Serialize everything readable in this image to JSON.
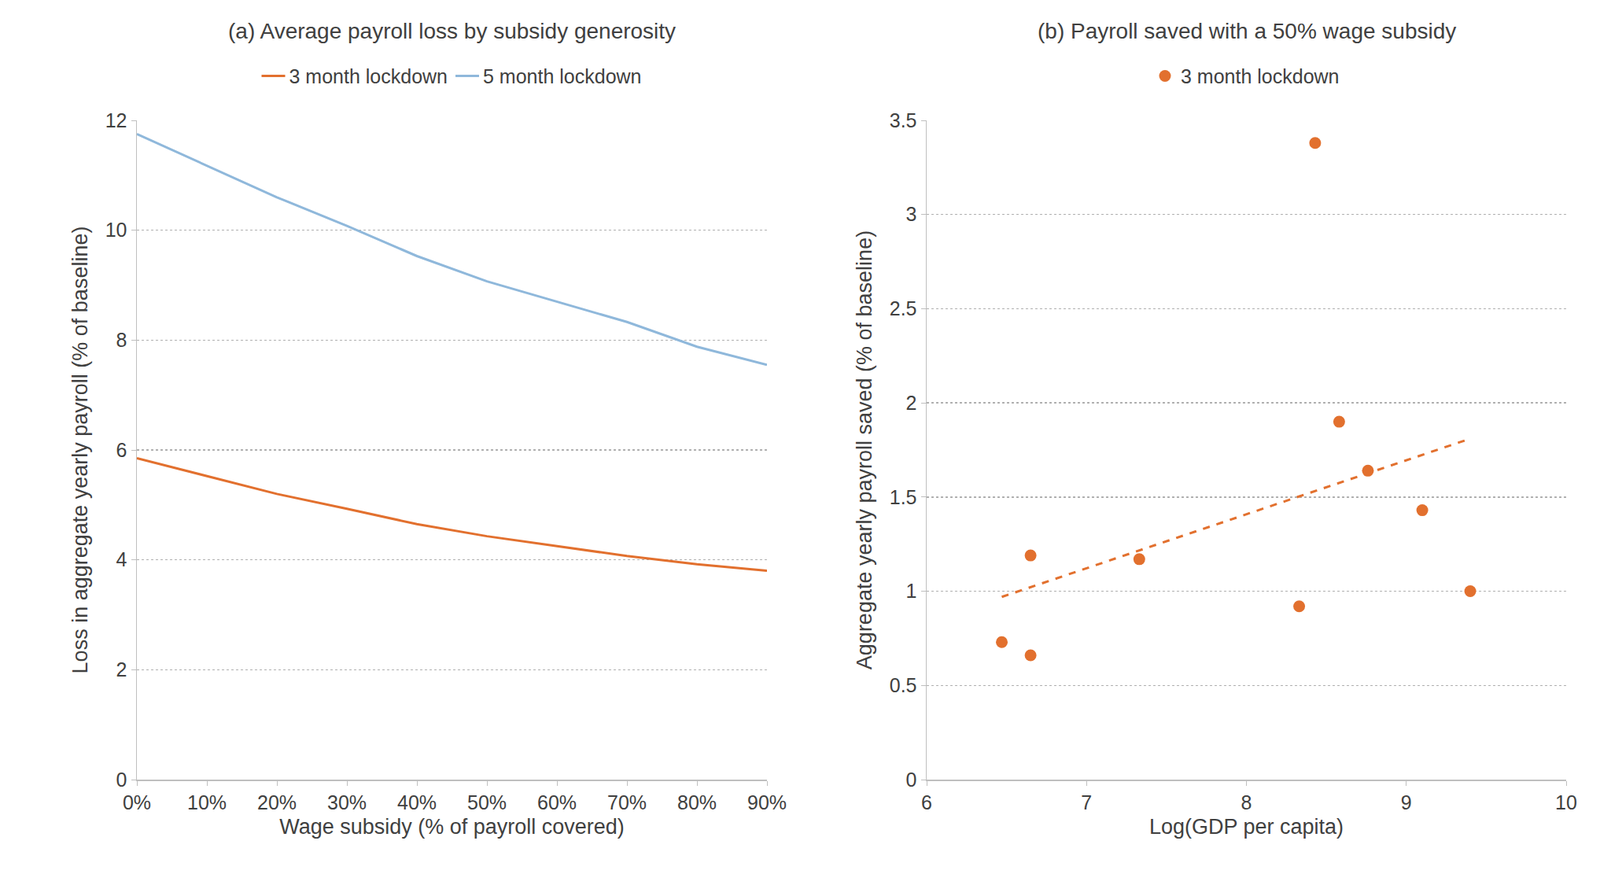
{
  "chart_data": [
    {
      "type": "line",
      "title": "(a) Average payroll loss by subsidy generosity",
      "x_label": "Wage subsidy (% of payroll covered)",
      "y_label": "Loss in aggregate yearly payroll (% of baseline)",
      "x": [
        0,
        10,
        20,
        30,
        40,
        50,
        60,
        70,
        80,
        90
      ],
      "series": [
        {
          "name": "3 month lockdown",
          "color": "#e2702e",
          "values": [
            5.85,
            5.52,
            5.2,
            4.93,
            4.65,
            4.43,
            4.25,
            4.07,
            3.92,
            3.8
          ]
        },
        {
          "name": "5 month lockdown",
          "color": "#8fb8db",
          "values": [
            11.75,
            11.18,
            10.6,
            10.08,
            9.53,
            9.07,
            8.7,
            8.33,
            7.88,
            7.55
          ]
        }
      ],
      "xlim": [
        0,
        90
      ],
      "xticks": [
        {
          "value": 0,
          "label": "0%"
        },
        {
          "value": 10,
          "label": "10%"
        },
        {
          "value": 20,
          "label": "20%"
        },
        {
          "value": 30,
          "label": "30%"
        },
        {
          "value": 40,
          "label": "40%"
        },
        {
          "value": 50,
          "label": "50%"
        },
        {
          "value": 60,
          "label": "60%"
        },
        {
          "value": 70,
          "label": "70%"
        },
        {
          "value": 80,
          "label": "80%"
        },
        {
          "value": 90,
          "label": "90%"
        }
      ],
      "ylim": [
        0,
        12
      ],
      "yticks": [
        0,
        2,
        4,
        6,
        8,
        10,
        12
      ],
      "grid": true,
      "legend": "top"
    },
    {
      "type": "scatter",
      "title": "(b) Payroll saved with a 50% wage subsidy",
      "x_label": "Log(GDP per capita)",
      "y_label": "Aggregate yearly payroll saved (% of baseline)",
      "series": [
        {
          "name": "3 month lockdown",
          "color": "#e2702e",
          "type": "scatter",
          "marker": "circle",
          "x": [
            6.47,
            6.65,
            6.65,
            7.33,
            8.33,
            8.43,
            8.58,
            8.76,
            9.1,
            9.4
          ],
          "values": [
            0.73,
            0.66,
            1.19,
            1.17,
            0.92,
            3.38,
            1.9,
            1.64,
            1.43,
            1.0
          ]
        },
        {
          "color": "#e2702e",
          "type": "line",
          "line_style": "dashed",
          "x": [
            6.47,
            9.4
          ],
          "values": [
            0.97,
            1.81
          ]
        }
      ],
      "xlim": [
        6,
        10
      ],
      "xticks": [
        6,
        7,
        8,
        9,
        10
      ],
      "ylim": [
        0,
        3.5
      ],
      "yticks": [
        0,
        0.5,
        1,
        1.5,
        2,
        2.5,
        3,
        3.5
      ],
      "grid": true,
      "legend": "top"
    }
  ]
}
